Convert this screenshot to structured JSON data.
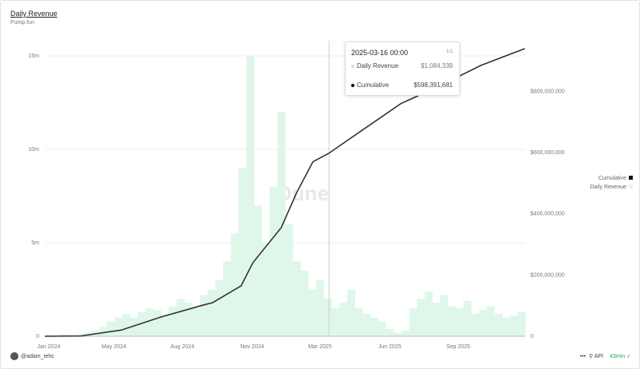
{
  "header": {
    "title": "Daily Revenue",
    "subtitle": "Pump.fun"
  },
  "watermark": "Dune",
  "tooltip": {
    "date": "2025-03-16 00:00",
    "page": "1/1",
    "rows": [
      {
        "label": "Daily Revenue",
        "value": "$1,084,339"
      },
      {
        "label": "Cumulative",
        "value": "$598,391,681"
      }
    ],
    "hover_day": 440
  },
  "legend": [
    {
      "label": "Cumulative",
      "color": "#111111"
    },
    {
      "label": "Daily Revenue",
      "color": "#dff7e8"
    }
  ],
  "footer": {
    "user": "@adam_tehc",
    "more": "•••",
    "api": "API",
    "refresh": "43min ✓"
  },
  "chart_data": {
    "type": "bar+line",
    "title": "Daily Revenue",
    "x_unit": "days since 2024-01-01",
    "xlim": [
      0,
      743
    ],
    "x_ticks": [
      {
        "label": "Jan 2024",
        "at": 6
      },
      {
        "label": "May 2024",
        "at": 107
      },
      {
        "label": "Aug 2024",
        "at": 213
      },
      {
        "label": "Nov 2024",
        "at": 321
      },
      {
        "label": "Mar 2025",
        "at": 426
      },
      {
        "label": "Jun 2025",
        "at": 534
      },
      {
        "label": "Sep 2025",
        "at": 640
      }
    ],
    "left_axis": {
      "ylim": [
        0,
        15000000
      ],
      "ticks": [
        {
          "label": "0",
          "v": 0
        },
        {
          "label": "5m",
          "v": 5000000
        },
        {
          "label": "10m",
          "v": 10000000
        },
        {
          "label": "15m",
          "v": 15000000
        }
      ]
    },
    "right_axis": {
      "ylim": [
        0,
        950000000
      ],
      "ticks": [
        {
          "label": "0",
          "v": 0
        },
        {
          "label": "$200,000,000",
          "v": 200000000
        },
        {
          "label": "$400,000,000",
          "v": 400000000
        },
        {
          "label": "$600,000,000",
          "v": 600000000
        },
        {
          "label": "$800,000,000",
          "v": 800000000
        }
      ]
    },
    "series": [
      {
        "name": "Daily Revenue",
        "axis": "left",
        "type": "bar",
        "step_days": 12,
        "values_musd": [
          0.05,
          0.05,
          0.08,
          0.1,
          0.15,
          0.2,
          0.3,
          0.5,
          0.8,
          1.0,
          1.2,
          1.0,
          1.3,
          1.5,
          1.4,
          1.2,
          1.6,
          2.0,
          1.8,
          1.5,
          2.2,
          2.5,
          3.0,
          4.0,
          5.5,
          9.0,
          15.0,
          7.0,
          5.0,
          8.0,
          12.0,
          6.0,
          4.0,
          3.5,
          2.5,
          3.0,
          2.0,
          1.5,
          1.8,
          2.5,
          1.5,
          1.2,
          1.0,
          0.8,
          0.4,
          0.2,
          0.3,
          1.5,
          2.0,
          2.4,
          1.8,
          2.2,
          1.6,
          1.5,
          1.9,
          1.2,
          1.4,
          1.6,
          1.2,
          1.0,
          1.1,
          1.3
        ]
      },
      {
        "name": "Cumulative",
        "axis": "right",
        "type": "line",
        "points": [
          [
            0,
            0
          ],
          [
            56,
            1000000
          ],
          [
            118,
            20000000
          ],
          [
            180,
            63000000
          ],
          [
            242,
            100000000
          ],
          [
            260,
            110000000
          ],
          [
            304,
            165000000
          ],
          [
            322,
            240000000
          ],
          [
            366,
            355000000
          ],
          [
            390,
            470000000
          ],
          [
            415,
            570000000
          ],
          [
            440,
            598391681
          ],
          [
            489,
            670000000
          ],
          [
            551,
            760000000
          ],
          [
            613,
            820000000
          ],
          [
            675,
            885000000
          ],
          [
            743,
            940000000
          ]
        ]
      }
    ]
  }
}
